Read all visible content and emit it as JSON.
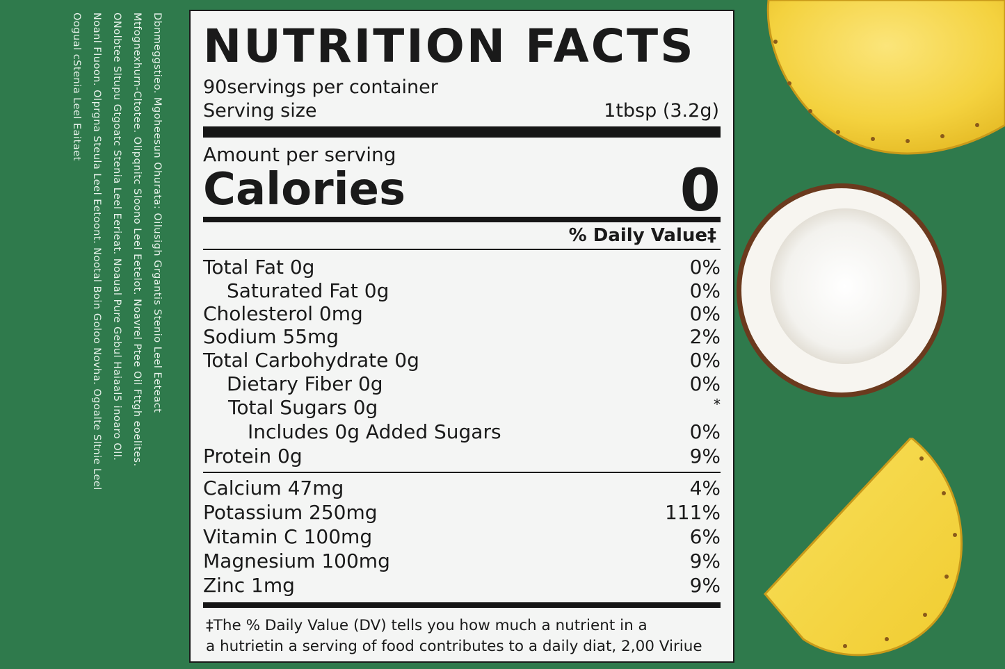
{
  "ingredients_lines": [
    "Dbnmeggstieo. Mgoheesun Ohurata: Oilusigh Grgantis Stenio Leel Eeteact",
    "Mtfognexhurn-Cltotee. Olipqnitc Sloono Leel Eetelot. Noavrel Ptee Oil Fttgh eoelites.",
    "ONolbtee Sltupu Gtgoatc Stenia Leel Eerieat. Noaual Pure Gebul Haiaal5 inoaro Oll.",
    "Noanl Fluoon. Olprgna Steula Leel Eetoont. Nootal Boin Goloo Novha. Ogoalte Sltnie Leel",
    "Oogual cStenia Leel Eaitaet"
  ],
  "label": {
    "title": "NUTRITION FACTS",
    "servings_per_container": "90servings per container",
    "serving_size_label": "Serving size",
    "serving_size_value": "1tbsp (3.2g)",
    "amount_per_serving": "Amount per serving",
    "calories_label": "Calories",
    "calories_value": "0",
    "daily_value_header": "% Daily Value‡",
    "nutrients": [
      {
        "label": "Total Fat 0g",
        "pct": "0%"
      },
      {
        "label": "Saturated Fat 0g",
        "pct": "0%"
      },
      {
        "label": "Cholesterol 0mg",
        "pct": "0%"
      },
      {
        "label": "Sodium 55mg",
        "pct": "2%"
      },
      {
        "label": "Total Carbohydrate 0g",
        "pct": "0%"
      },
      {
        "label": "Dietary Fiber 0g",
        "pct": "0%"
      },
      {
        "label": "Total Sugars 0g",
        "pct": "*"
      },
      {
        "label": "Includes 0g Added Sugars",
        "pct": "0%"
      },
      {
        "label": "Protein 0g",
        "pct": "9%"
      }
    ],
    "minerals": [
      {
        "label": "Calcium 47mg",
        "pct": "4%"
      },
      {
        "label": "Potassium 250mg",
        "pct": "111%"
      },
      {
        "label": "Vitamin C 100mg",
        "pct": "6%"
      },
      {
        "label": "Magnesium 100mg",
        "pct": "9%"
      },
      {
        "label": "Zinc 1mg",
        "pct": "9%"
      }
    ],
    "footnote_line1": "‡The % Daily Value (DV) tells you how much a nutrient in a",
    "footnote_line2": "a hutrietin a serving of food contributes to a daily diat, 2,00 Viriue"
  },
  "colors": {
    "background": "#2f7a4c",
    "panel": "#f4f5f4",
    "pineapple": "#f4d642",
    "coconut_shell": "#6b3a1e"
  }
}
